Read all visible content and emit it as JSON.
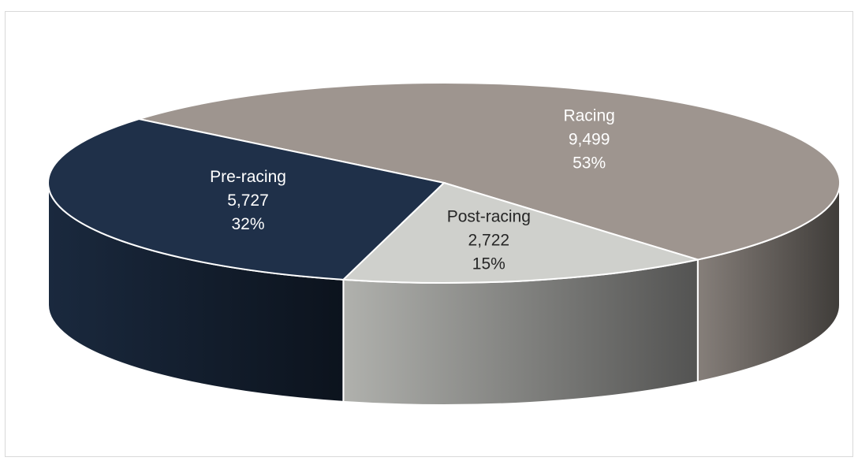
{
  "chart_data": {
    "type": "pie",
    "categories": [
      "Racing",
      "Post-racing",
      "Pre-racing"
    ],
    "values": [
      9499,
      2722,
      5727
    ],
    "value_labels": [
      "9,499",
      "2,722",
      "5,727"
    ],
    "percent_labels": [
      "53%",
      "15%",
      "32%"
    ],
    "colors": [
      "#9e958f",
      "#cfd0cc",
      "#1f3049"
    ],
    "three_d": true
  }
}
